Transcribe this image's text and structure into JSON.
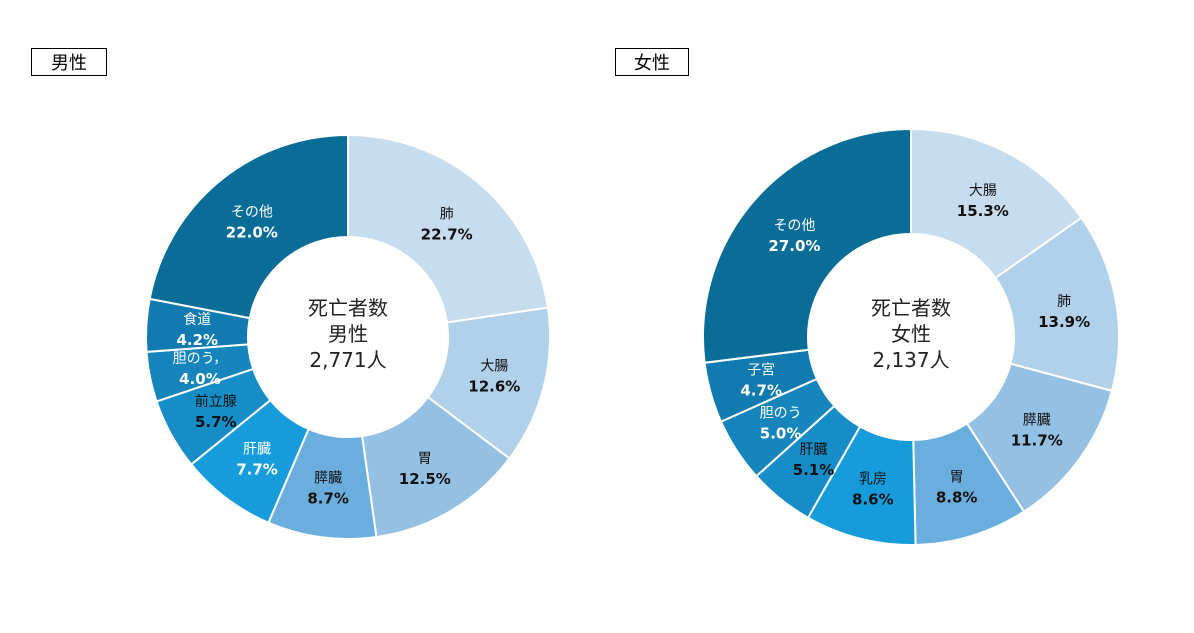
{
  "chart_data": [
    {
      "type": "pie",
      "title": "男性",
      "center_lines": [
        "死亡者数",
        "男性",
        "2,771人"
      ],
      "slices": [
        {
          "label": "肺",
          "value": 22.7,
          "display": "22.7%",
          "color": "#c6dcef",
          "text": "#111111"
        },
        {
          "label": "大腸",
          "value": 12.6,
          "display": "12.6%",
          "color": "#b1d0ea",
          "text": "#111111"
        },
        {
          "label": "胃",
          "value": 12.5,
          "display": "12.5%",
          "color": "#94c0e3",
          "text": "#111111"
        },
        {
          "label": "膵臓",
          "value": 8.7,
          "display": "8.7%",
          "color": "#6aaede",
          "text": "#111111"
        },
        {
          "label": "肝臓",
          "value": 7.7,
          "display": "7.7%",
          "color": "#169cda",
          "text": "#ffffff"
        },
        {
          "label": "前立腺",
          "value": 5.7,
          "display": "5.7%",
          "color": "#168dc6",
          "text": "#111111"
        },
        {
          "label": "胆のう，",
          "value": 4.0,
          "display": "4.0%",
          "color": "#1585bc",
          "text": "#ffffff"
        },
        {
          "label": "食道",
          "value": 4.2,
          "display": "4.2%",
          "color": "#107ab1",
          "text": "#ffffff"
        },
        {
          "label": "その他",
          "value": 22.0,
          "display": "22.0%",
          "color": "#0a6d97",
          "text": "#ffffff"
        }
      ]
    },
    {
      "type": "pie",
      "title": "女性",
      "center_lines": [
        "死亡者数",
        "女性",
        "2,137人"
      ],
      "slices": [
        {
          "label": "大腸",
          "value": 15.3,
          "display": "15.3%",
          "color": "#c6dcef",
          "text": "#111111"
        },
        {
          "label": "肺",
          "value": 13.9,
          "display": "13.9%",
          "color": "#b1d0ea",
          "text": "#111111"
        },
        {
          "label": "膵臓",
          "value": 11.7,
          "display": "11.7%",
          "color": "#94c0e3",
          "text": "#111111"
        },
        {
          "label": "胃",
          "value": 8.8,
          "display": "8.8%",
          "color": "#6aaede",
          "text": "#111111"
        },
        {
          "label": "乳房",
          "value": 8.6,
          "display": "8.6%",
          "color": "#169cda",
          "text": "#111111"
        },
        {
          "label": "肝臓",
          "value": 5.1,
          "display": "5.1%",
          "color": "#168dc6",
          "text": "#111111"
        },
        {
          "label": "胆のう",
          "value": 5.0,
          "display": "5.0%",
          "color": "#1585bc",
          "text": "#ffffff"
        },
        {
          "label": "子宮",
          "value": 4.7,
          "display": "4.7%",
          "color": "#107ab1",
          "text": "#ffffff"
        },
        {
          "label": "その他",
          "value": 27.0,
          "display": "27.0%",
          "color": "#0a6d97",
          "text": "#ffffff"
        }
      ]
    }
  ]
}
